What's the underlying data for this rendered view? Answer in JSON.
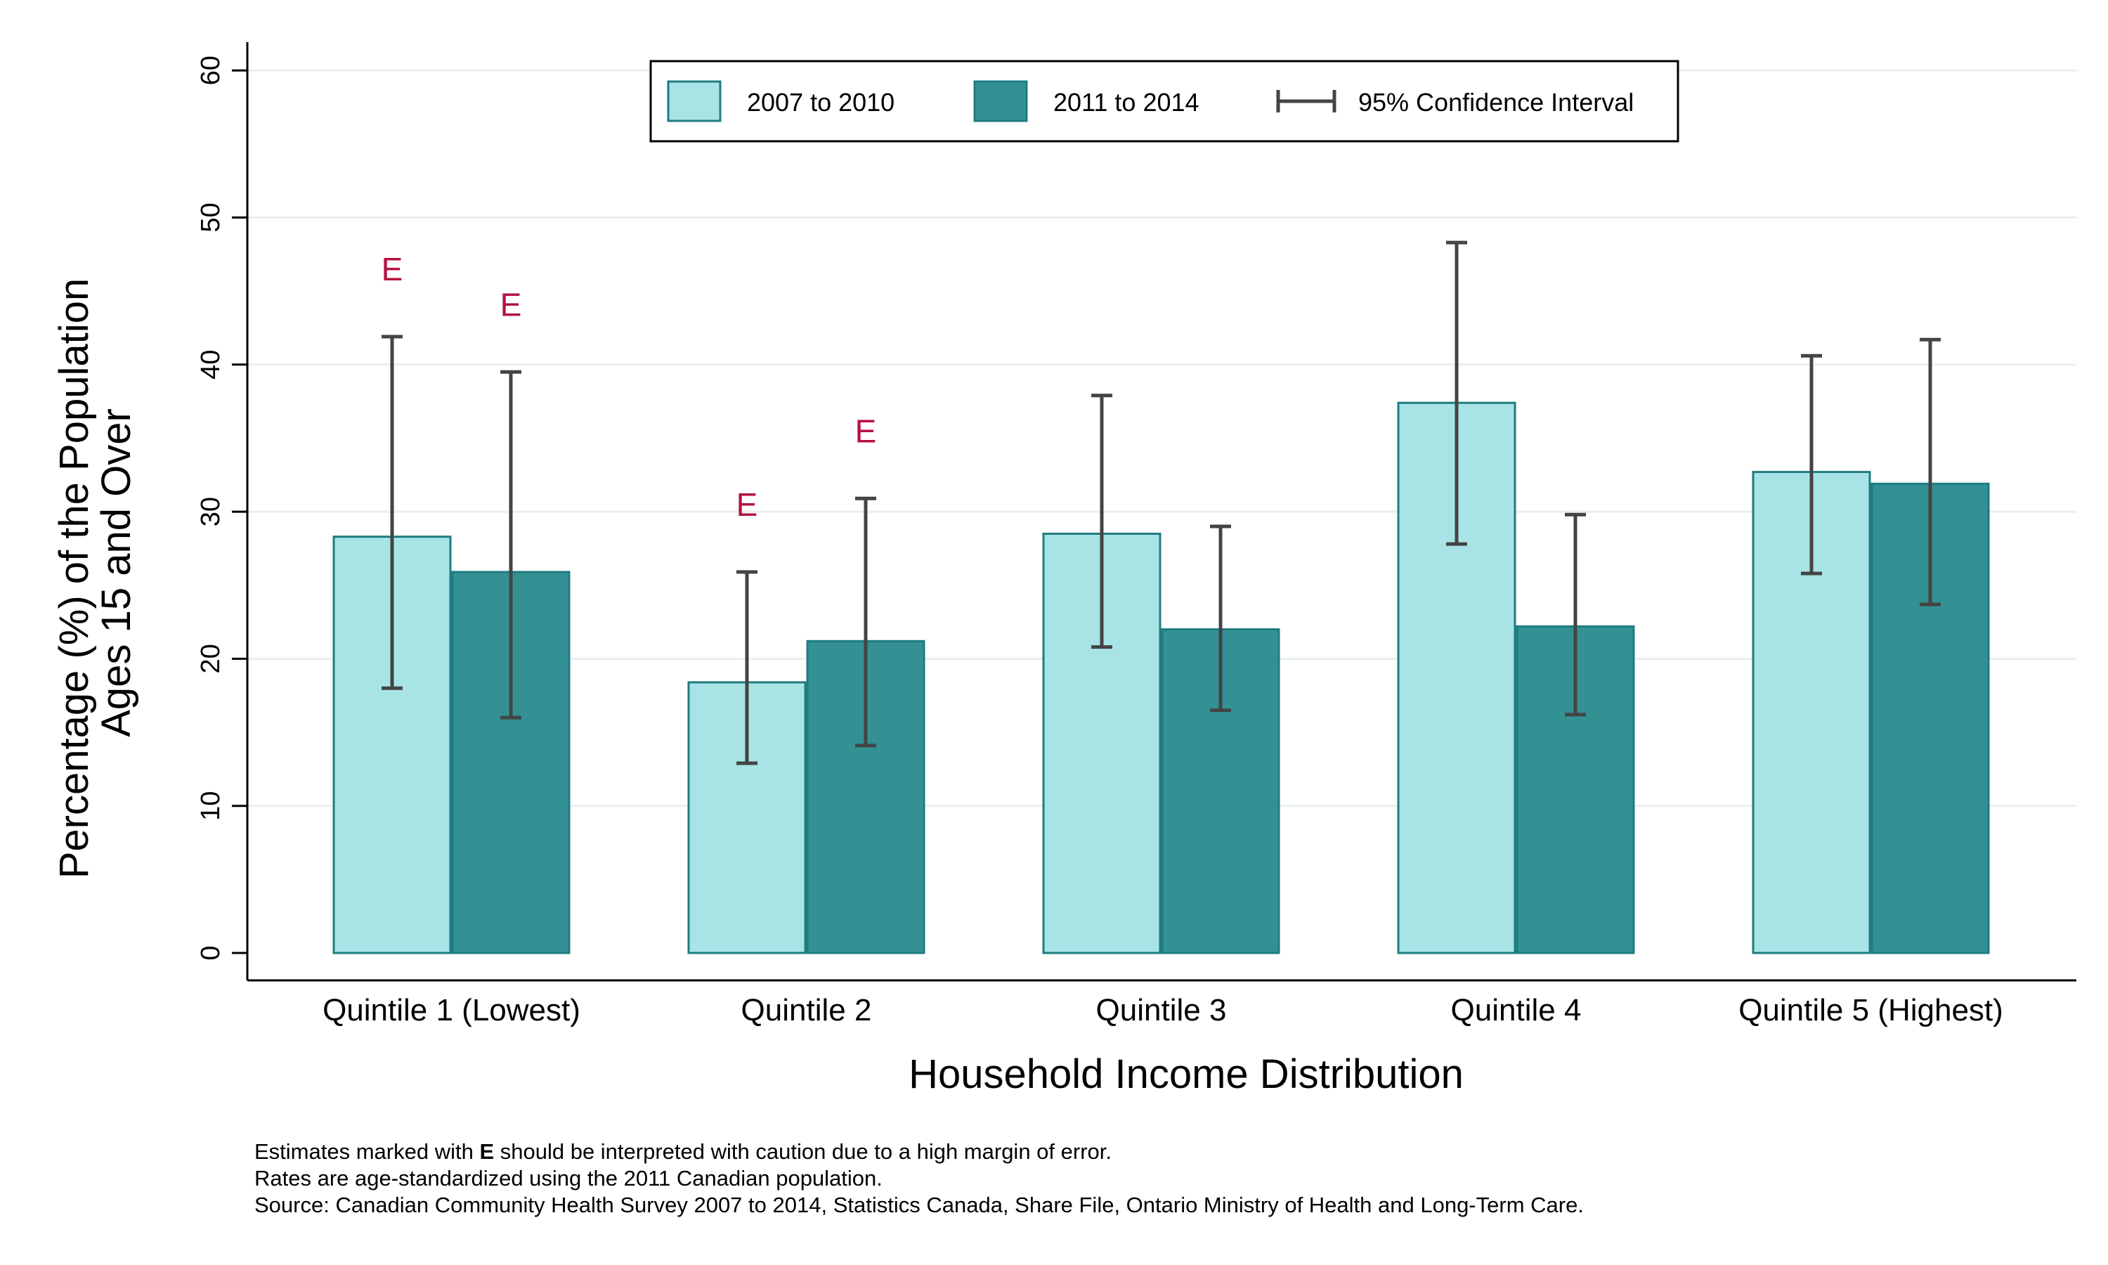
{
  "chart_data": {
    "type": "bar",
    "categories": [
      "Quintile 1 (Lowest)",
      "Quintile 2",
      "Quintile 3",
      "Quintile 4",
      "Quintile 5 (Highest)"
    ],
    "series": [
      {
        "name": "2007 to 2010",
        "color": "#a8e4e6",
        "values": [
          28.3,
          18.4,
          28.5,
          37.4,
          32.7
        ],
        "ci_low": [
          18.0,
          12.9,
          20.8,
          27.8,
          25.8
        ],
        "ci_high": [
          41.9,
          25.9,
          37.9,
          48.3,
          40.6
        ],
        "flag_e": [
          true,
          true,
          false,
          false,
          false
        ]
      },
      {
        "name": "2011 to 2014",
        "color": "#339194",
        "values": [
          25.9,
          21.2,
          22.0,
          22.2,
          31.9
        ],
        "ci_low": [
          16.0,
          14.1,
          16.5,
          16.2,
          23.7
        ],
        "ci_high": [
          39.5,
          30.9,
          29.0,
          29.8,
          41.7
        ],
        "flag_e": [
          true,
          true,
          false,
          false,
          false
        ]
      }
    ],
    "estimate_flag": "E",
    "ylabel_lines": [
      "Percentage (%) of the Population",
      "Ages 15 and Over"
    ],
    "xlabel": "Household Income Distribution",
    "ylim": [
      0,
      60
    ],
    "yticks": [
      0,
      10,
      20,
      30,
      40,
      50,
      60
    ],
    "grid": true,
    "legend": {
      "position": "top-center",
      "ci_label": "95% Confidence Interval"
    }
  },
  "footnotes": {
    "line1_prefix": "Estimates marked with ",
    "line1_bold": "E",
    "line1_suffix": " should be interpreted with caution due to a high margin of error.",
    "line2": "Rates are age-standardized using the 2011 Canadian population.",
    "line3": "Source: Canadian Community Health Survey 2007 to 2014, Statistics Canada, Share File, Ontario Ministry of Health and Long-Term Care."
  }
}
